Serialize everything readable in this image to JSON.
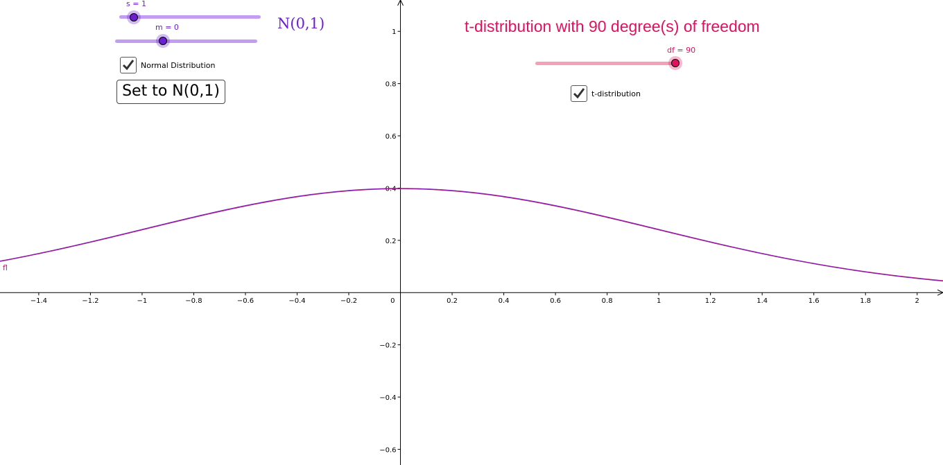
{
  "colors": {
    "normal": "#6a1fd1",
    "normal_track": "#c29df0",
    "t": "#e0115f",
    "t_track": "#f5a0b8",
    "curve": "#c0186b"
  },
  "normal_controls": {
    "s_label": "s = 1",
    "s_value": 1,
    "m_label": "m = 0",
    "m_value": 0,
    "title": "N(0,1)",
    "checkbox_label": "Normal Distribution",
    "checkbox_checked": true,
    "button_label": "Set to N(0,1)"
  },
  "t_controls": {
    "title": "t-distribution with 90 degree(s) of freedom",
    "df_label": "df = 90",
    "df_value": 90,
    "checkbox_label": "t-distribution",
    "checkbox_checked": true
  },
  "curve_label": "fl",
  "chart_data": {
    "type": "line",
    "x_range": [
      -1.55,
      2.1
    ],
    "y_range": [
      -0.66,
      1.12
    ],
    "x_ticks": [
      -1.4,
      -1.2,
      -1,
      -0.8,
      -0.6,
      -0.4,
      -0.2,
      0,
      0.2,
      0.4,
      0.6,
      0.8,
      1,
      1.2,
      1.4,
      1.6,
      1.8,
      2
    ],
    "x_tick_labels": [
      "−1.4",
      "−1.2",
      "−1",
      "−0.8",
      "−0.6",
      "−0.4",
      "−0.2",
      "0",
      "0.2",
      "0.4",
      "0.6",
      "0.8",
      "1",
      "1.2",
      "1.4",
      "1.6",
      "1.8",
      "2"
    ],
    "y_ticks": [
      -0.6,
      -0.4,
      -0.2,
      0.2,
      0.4,
      0.6,
      0.8,
      1
    ],
    "y_tick_labels": [
      "−0.6",
      "−0.4",
      "−0.2",
      "0.2",
      "0.4",
      "0.6",
      "0.8",
      "1"
    ],
    "series": [
      {
        "name": "fl",
        "mean": 0,
        "sd": 1,
        "df": 90
      }
    ]
  }
}
